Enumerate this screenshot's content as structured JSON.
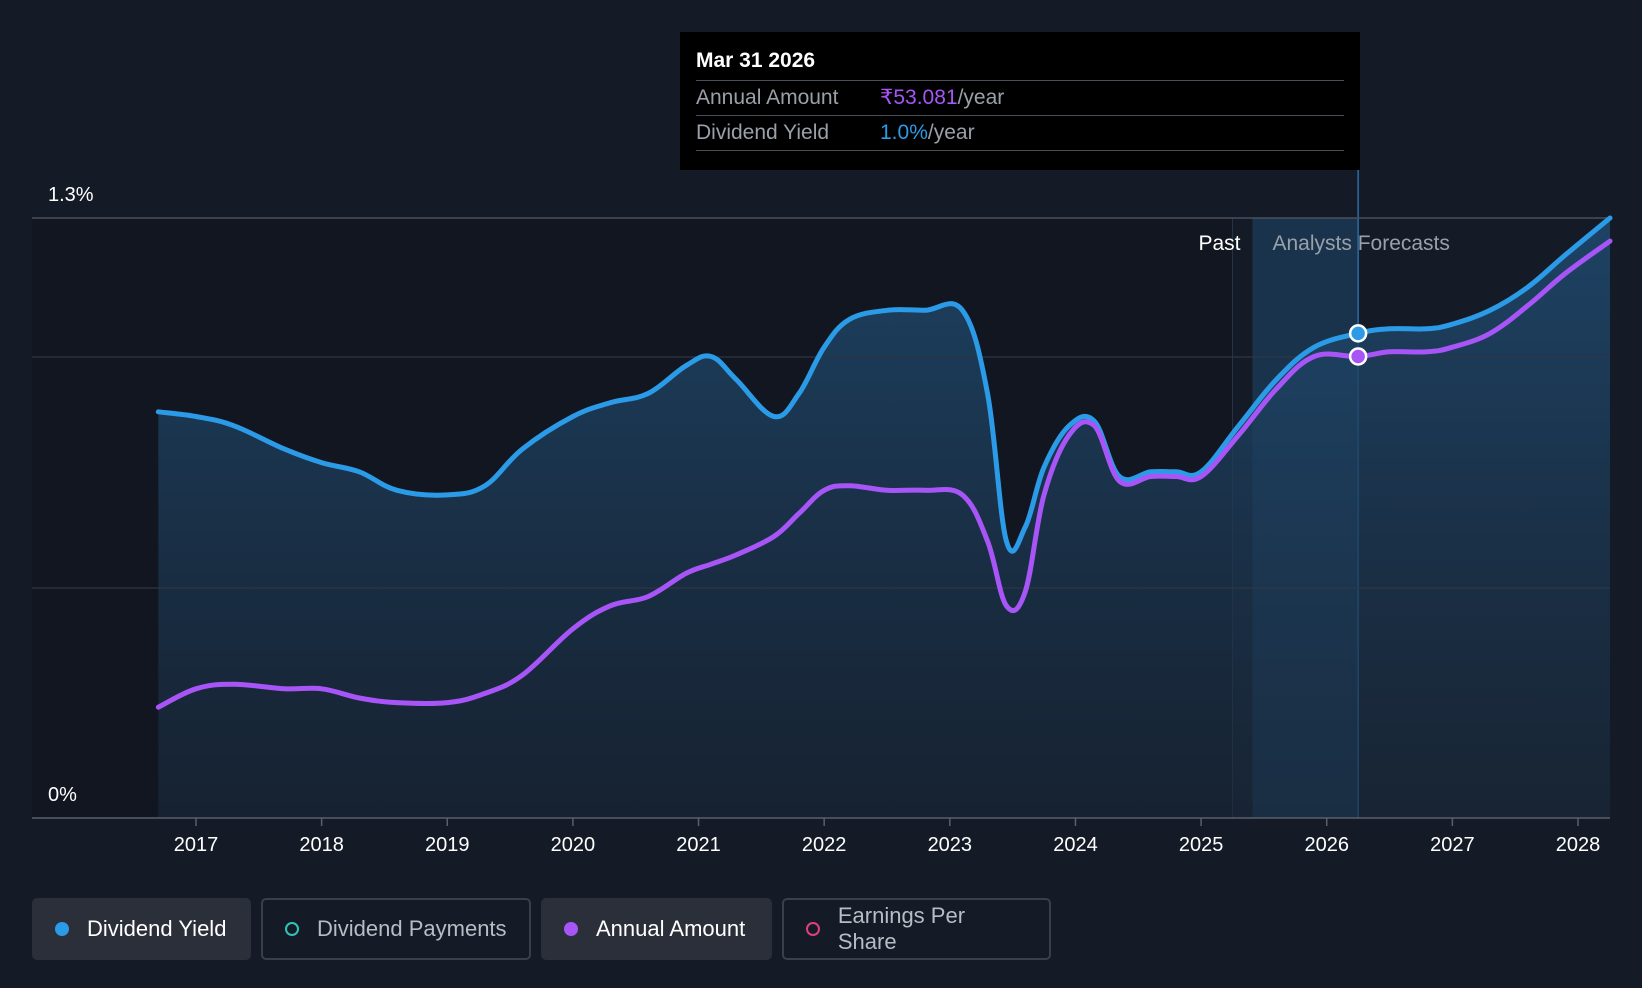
{
  "chart_data": {
    "type": "area",
    "y_axis": {
      "top_label": "1.3%",
      "bottom_label": "0%",
      "ylim": [
        0,
        1.3
      ],
      "grid": true
    },
    "x_axis": {
      "ticks": [
        "2017",
        "2018",
        "2019",
        "2020",
        "2021",
        "2022",
        "2023",
        "2024",
        "2025",
        "2026",
        "2027",
        "2028"
      ],
      "xlim": [
        2016.2,
        2028.25
      ]
    },
    "zones": {
      "past_label": "Past",
      "forecast_label": "Analysts Forecasts",
      "forecast_start": 2025.25
    },
    "series": [
      {
        "name": "Dividend Yield",
        "color": "#2b9be8",
        "x": [
          2016.7,
          2017.0,
          2017.3,
          2017.7,
          2018.0,
          2018.3,
          2018.6,
          2019.0,
          2019.3,
          2019.6,
          2020.0,
          2020.3,
          2020.6,
          2020.9,
          2021.1,
          2021.3,
          2021.6,
          2021.8,
          2022.0,
          2022.2,
          2022.5,
          2022.8,
          2023.1,
          2023.3,
          2023.45,
          2023.6,
          2023.75,
          2023.95,
          2024.15,
          2024.35,
          2024.6,
          2024.8,
          2025.0,
          2025.3,
          2025.6,
          2025.9,
          2026.25,
          2026.5,
          2026.8,
          2027.0,
          2027.3,
          2027.6,
          2027.9,
          2028.25
        ],
        "values": [
          0.88,
          0.87,
          0.85,
          0.8,
          0.77,
          0.75,
          0.71,
          0.7,
          0.72,
          0.8,
          0.87,
          0.9,
          0.92,
          0.98,
          1.0,
          0.95,
          0.87,
          0.92,
          1.02,
          1.08,
          1.1,
          1.1,
          1.1,
          0.92,
          0.6,
          0.63,
          0.76,
          0.85,
          0.86,
          0.74,
          0.75,
          0.75,
          0.75,
          0.85,
          0.95,
          1.02,
          1.05,
          1.06,
          1.06,
          1.07,
          1.1,
          1.15,
          1.22,
          1.3
        ],
        "highlight_point": {
          "x": 2026.25,
          "y": 1.05
        }
      },
      {
        "name": "Annual Amount",
        "color": "#a855f7",
        "x": [
          2016.7,
          2017.0,
          2017.3,
          2017.7,
          2018.0,
          2018.3,
          2018.6,
          2019.0,
          2019.3,
          2019.6,
          2020.0,
          2020.3,
          2020.6,
          2020.9,
          2021.1,
          2021.3,
          2021.6,
          2021.8,
          2022.0,
          2022.2,
          2022.5,
          2022.8,
          2023.1,
          2023.3,
          2023.45,
          2023.6,
          2023.75,
          2023.95,
          2024.15,
          2024.35,
          2024.6,
          2024.8,
          2025.0,
          2025.3,
          2025.6,
          2025.9,
          2026.25,
          2026.5,
          2026.8,
          2027.0,
          2027.3,
          2027.6,
          2027.9,
          2028.25
        ],
        "values": [
          0.24,
          0.28,
          0.29,
          0.28,
          0.28,
          0.26,
          0.25,
          0.25,
          0.27,
          0.31,
          0.41,
          0.46,
          0.48,
          0.53,
          0.55,
          0.57,
          0.61,
          0.66,
          0.71,
          0.72,
          0.71,
          0.71,
          0.7,
          0.6,
          0.46,
          0.49,
          0.7,
          0.83,
          0.85,
          0.73,
          0.74,
          0.74,
          0.74,
          0.83,
          0.93,
          1.0,
          1.0,
          1.01,
          1.01,
          1.02,
          1.05,
          1.11,
          1.18,
          1.25
        ],
        "highlight_point": {
          "x": 2026.25,
          "y": 1.0
        }
      }
    ],
    "legend_position": "bottom-left"
  },
  "tooltip": {
    "date": "Mar 31 2026",
    "rows": [
      {
        "label": "Annual Amount",
        "value": "₹53.081",
        "unit": "/year"
      },
      {
        "label": "Dividend Yield",
        "value": "1.0%",
        "unit": "/year"
      }
    ]
  },
  "legend": {
    "items": [
      {
        "label": "Dividend Yield",
        "color": "#2b9be8",
        "active": true
      },
      {
        "label": "Dividend Payments",
        "color": "#2ec4b6",
        "active": false
      },
      {
        "label": "Annual Amount",
        "color": "#a855f7",
        "active": true
      },
      {
        "label": "Earnings Per Share",
        "color": "#e0407a",
        "active": false
      }
    ]
  },
  "colors": {
    "background": "#151b26",
    "forecast_band": "#1a3a5c",
    "area_fill": "#1c3350",
    "grid": "#333a45"
  }
}
